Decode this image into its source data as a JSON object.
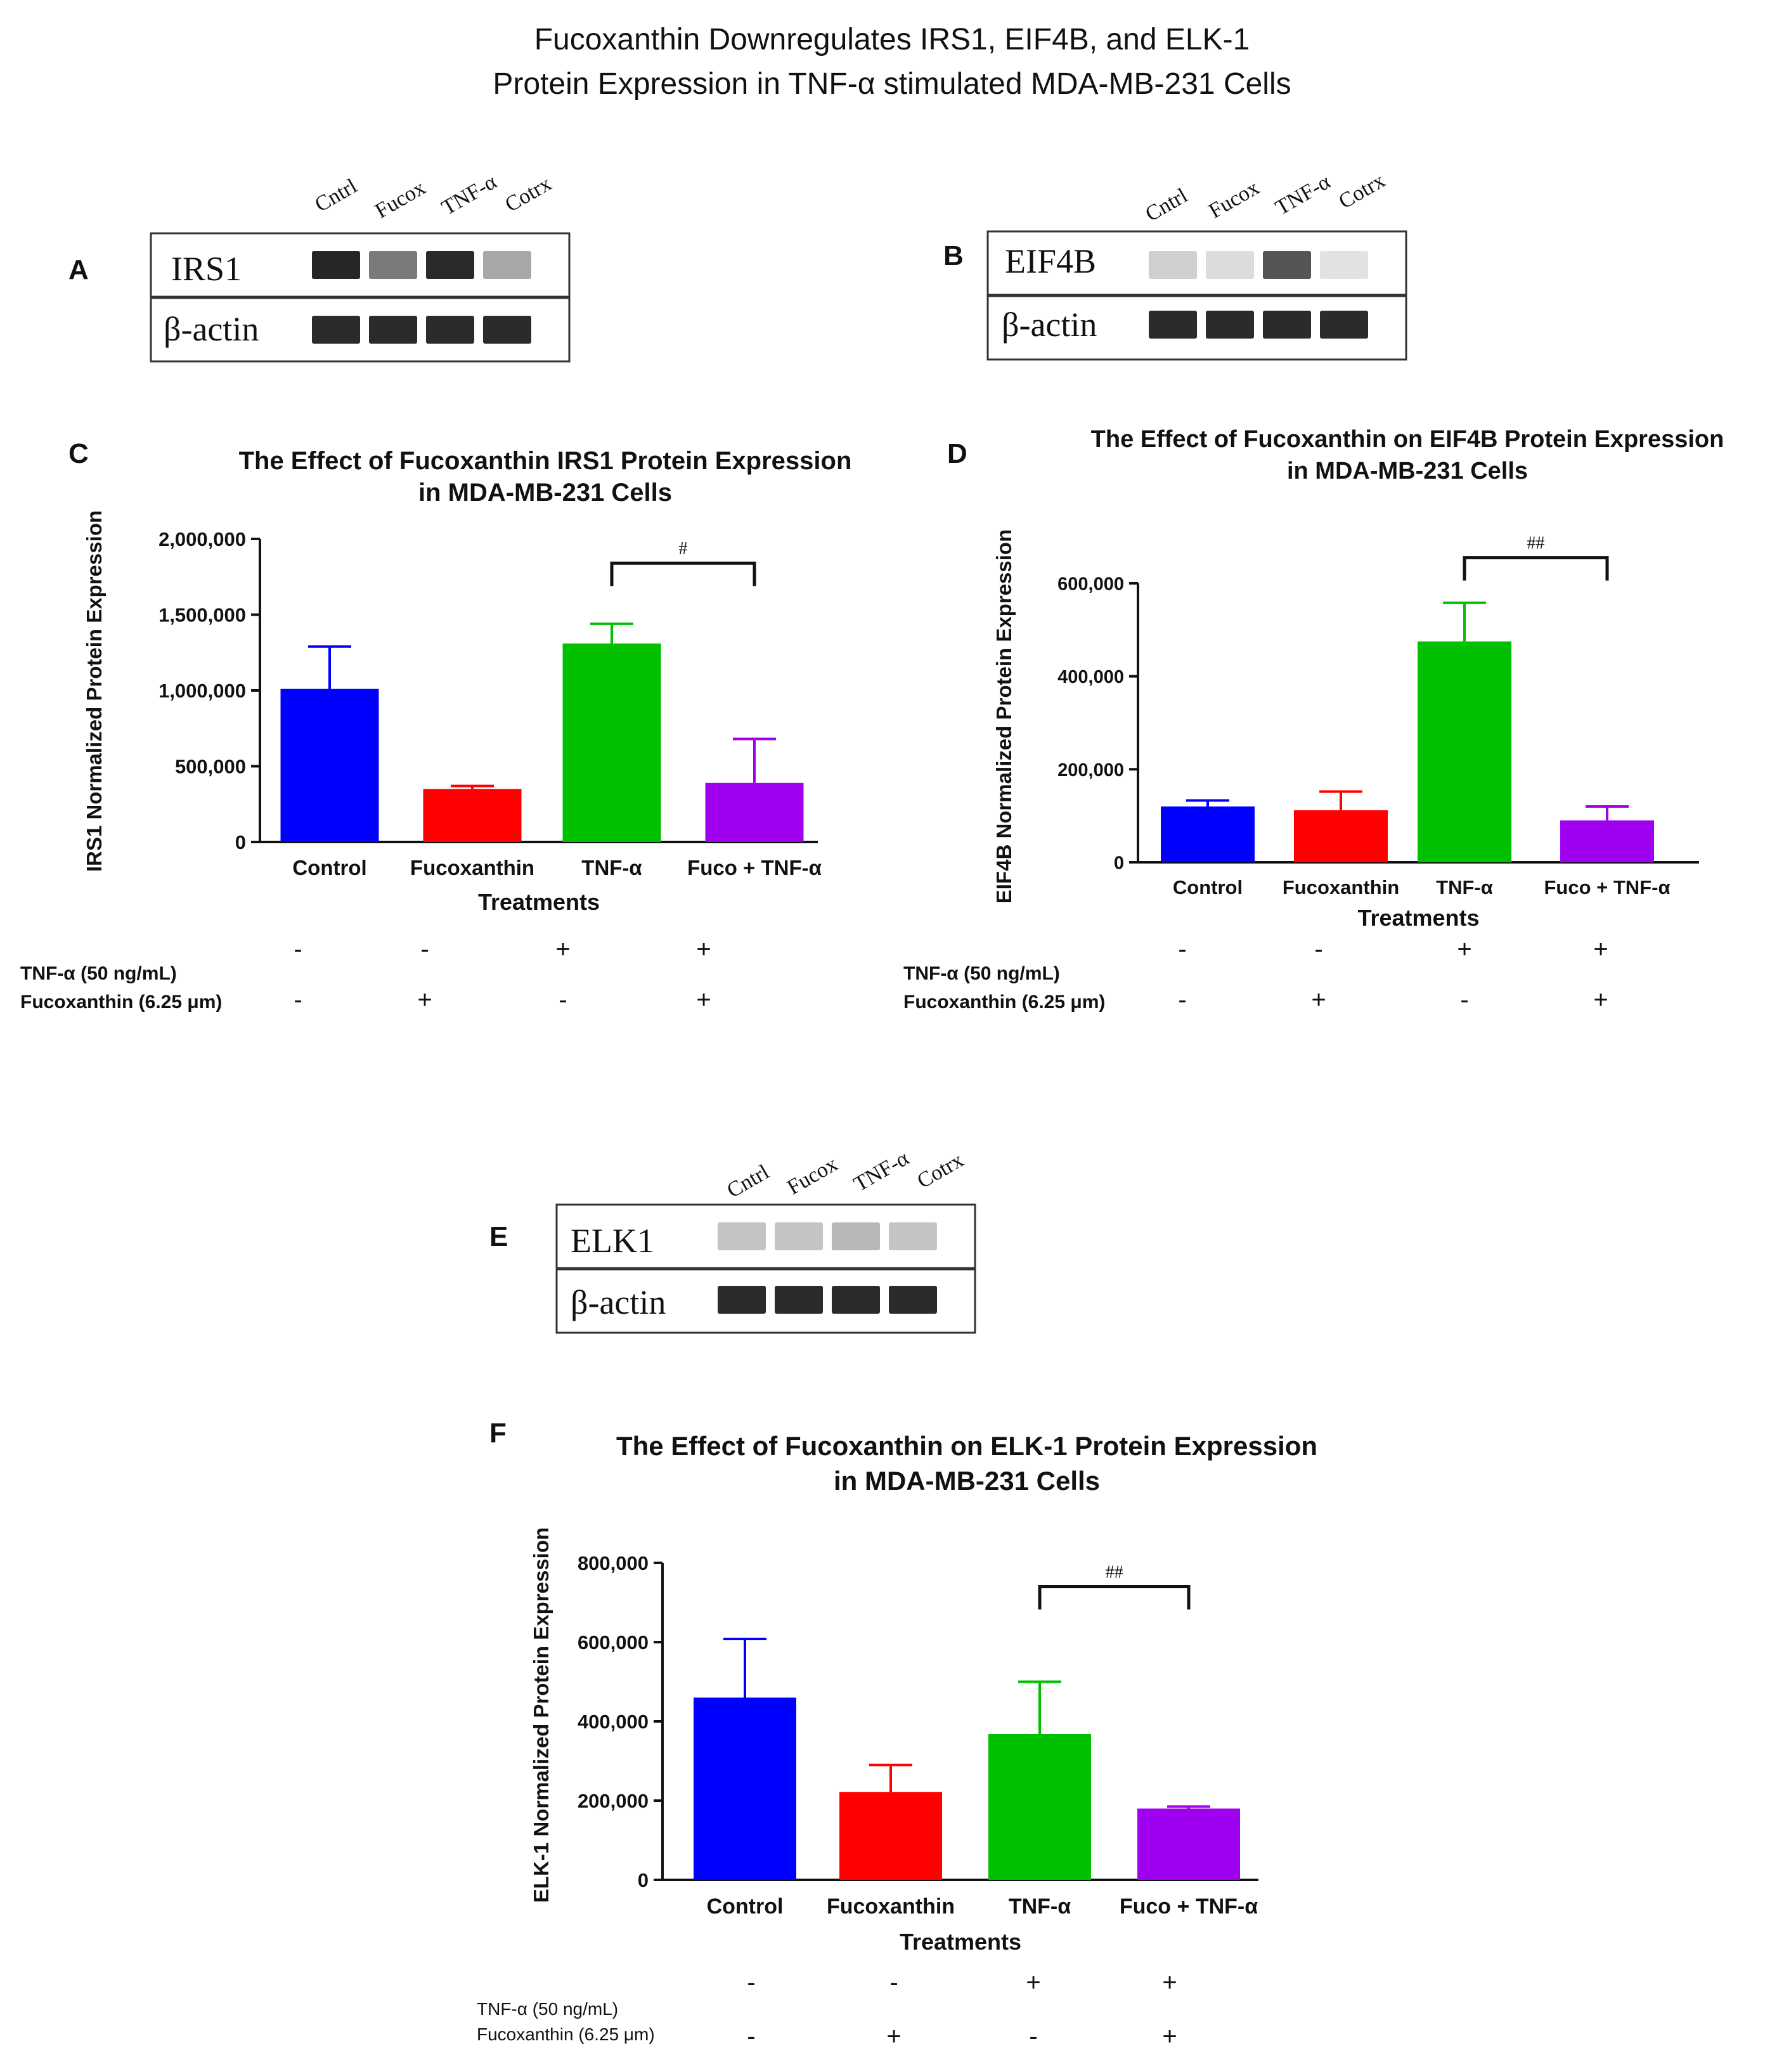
{
  "title": {
    "line1": "Fucoxanthin Downregulates IRS1, EIF4B, and ELK-1",
    "line2": "Protein Expression in TNF-α stimulated MDA-MB-231 Cells"
  },
  "blots": [
    {
      "panel": "A",
      "lane_labels": [
        "Cntrl",
        "Fucox",
        "TNF-α",
        "Cotrx"
      ],
      "rows": [
        {
          "label": "IRS1",
          "band_colors": [
            "#262626",
            "#7a7a7a",
            "#2a2a2a",
            "#a8a8a8"
          ]
        },
        {
          "label": "β-actin",
          "band_colors": [
            "#2b2b2b",
            "#2b2b2b",
            "#2b2b2b",
            "#2b2b2b"
          ]
        }
      ]
    },
    {
      "panel": "B",
      "lane_labels": [
        "Cntrl",
        "Fucox",
        "TNF-α",
        "Cotrx"
      ],
      "rows": [
        {
          "label": "EIF4B",
          "band_colors": [
            "#cfcfcf",
            "#dcdcdc",
            "#555555",
            "#e2e2e2"
          ]
        },
        {
          "label": "β-actin",
          "band_colors": [
            "#2b2b2b",
            "#2b2b2b",
            "#2b2b2b",
            "#2b2b2b"
          ]
        }
      ]
    },
    {
      "panel": "E",
      "lane_labels": [
        "Cntrl",
        "Fucox",
        "TNF-α",
        "Cotrx"
      ],
      "rows": [
        {
          "label": "ELK1",
          "band_colors": [
            "#c4c4c4",
            "#c4c4c4",
            "#b8b8b8",
            "#c4c4c4"
          ]
        },
        {
          "label": "β-actin",
          "band_colors": [
            "#2b2b2b",
            "#2b2b2b",
            "#2b2b2b",
            "#2b2b2b"
          ]
        }
      ]
    }
  ],
  "treatment_legend": {
    "row1_label": "TNF-α (50 ng/mL)",
    "row2_label": "Fucoxanthin (6.25 μm)",
    "row1_signs": [
      "-",
      "-",
      "+",
      "+"
    ],
    "row2_signs": [
      "-",
      "+",
      "-",
      "+"
    ]
  },
  "chart_data": [
    {
      "panel": "C",
      "type": "bar",
      "title": [
        "The Effect of Fucoxanthin IRS1 Protein Expression",
        "in MDA-MB-231 Cells"
      ],
      "xlabel": "Treatments",
      "ylabel": "IRS1 Normalized Protein Expression",
      "categories": [
        "Control",
        "Fucoxanthin",
        "TNF-α",
        "Fuco + TNF-α"
      ],
      "values": [
        1010000,
        350000,
        1310000,
        390000
      ],
      "errors": [
        280000,
        20000,
        130000,
        290000
      ],
      "colors": [
        "#0000ff",
        "#ff0000",
        "#00c000",
        "#a000f0"
      ],
      "ylim": [
        0,
        2000000
      ],
      "yticks": [
        0,
        500000,
        1000000,
        1500000,
        2000000
      ],
      "ytick_labels": [
        "0",
        "500,000",
        "1,000,000",
        "1,500,000",
        "2,000,000"
      ],
      "significance": {
        "from": 2,
        "to": 3,
        "label": "#",
        "y": 1840000
      }
    },
    {
      "panel": "D",
      "type": "bar",
      "title": [
        "The Effect of Fucoxanthin on EIF4B Protein Expression",
        "in MDA-MB-231 Cells"
      ],
      "xlabel": "Treatments",
      "ylabel": "EIF4B Normalized Protein Expression",
      "categories": [
        "Control",
        "Fucoxanthin",
        "TNF-α",
        "Fuco + TNF-α"
      ],
      "values": [
        120000,
        112000,
        475000,
        90000
      ],
      "errors": [
        13000,
        40000,
        83000,
        30000
      ],
      "colors": [
        "#0000ff",
        "#ff0000",
        "#00c000",
        "#a000f0"
      ],
      "ylim": [
        0,
        600000
      ],
      "yticks": [
        0,
        200000,
        400000,
        600000
      ],
      "ytick_labels": [
        "0",
        "200,000",
        "400,000",
        "600,000"
      ],
      "significance": {
        "from": 2,
        "to": 3,
        "label": "##",
        "y": 655000
      }
    },
    {
      "panel": "F",
      "type": "bar",
      "title": [
        "The Effect of Fucoxanthin on ELK-1 Protein Expression",
        "in MDA-MB-231 Cells"
      ],
      "xlabel": "Treatments",
      "ylabel": "ELK-1 Normalized Protein Expression",
      "categories": [
        "Control",
        "Fucoxanthin",
        "TNF-α",
        "Fuco + TNF-α"
      ],
      "values": [
        460000,
        222000,
        368000,
        180000
      ],
      "errors": [
        148000,
        68000,
        132000,
        5000
      ],
      "colors": [
        "#0000ff",
        "#ff0000",
        "#00c000",
        "#a000f0"
      ],
      "ylim": [
        0,
        800000
      ],
      "yticks": [
        0,
        200000,
        400000,
        600000,
        800000
      ],
      "ytick_labels": [
        "0",
        "200,000",
        "400,000",
        "600,000",
        "800,000"
      ],
      "significance": {
        "from": 2,
        "to": 3,
        "label": "##",
        "y": 740000
      }
    }
  ]
}
